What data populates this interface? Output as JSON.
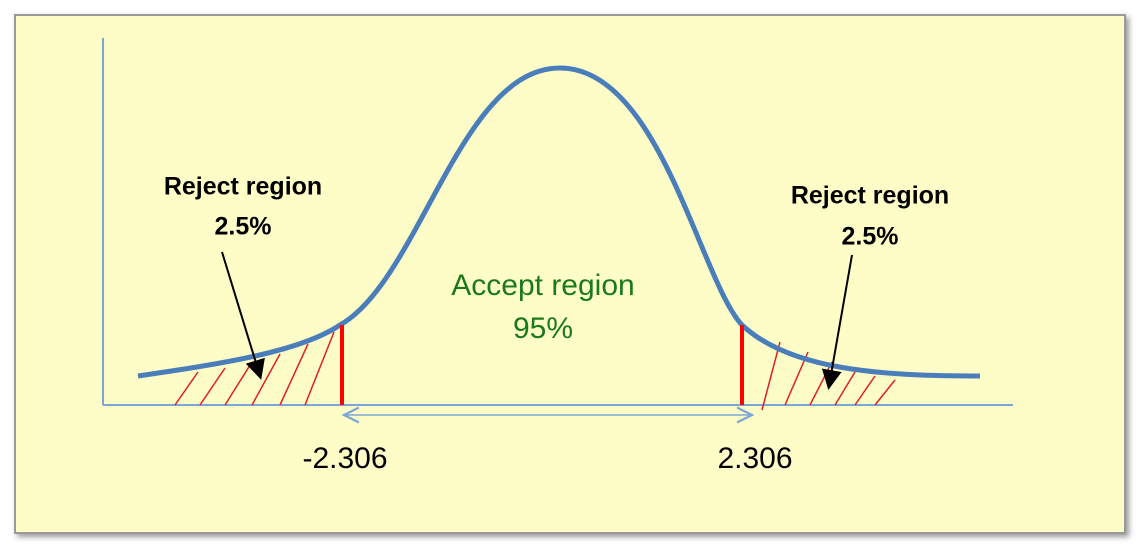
{
  "left_reject": {
    "label": "Reject region",
    "percent": "2.5%"
  },
  "right_reject": {
    "label": "Reject region",
    "percent": "2.5%"
  },
  "accept": {
    "label": "Accept region",
    "percent": "95%"
  },
  "critical_values": {
    "left": "-2.306",
    "right": "2.306"
  }
}
